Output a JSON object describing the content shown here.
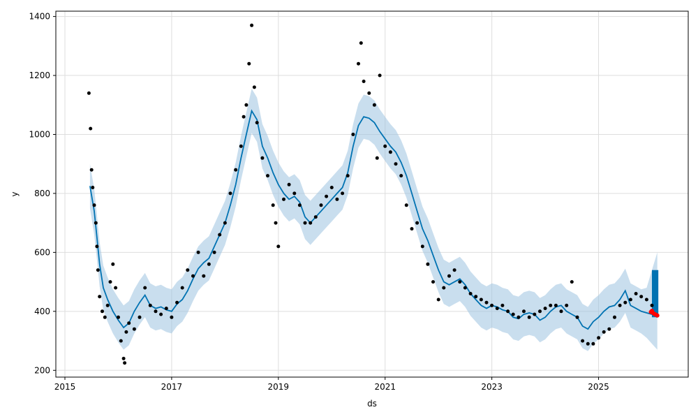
{
  "chart_data": {
    "type": "scatter",
    "title": "",
    "xlabel": "ds",
    "ylabel": "y",
    "xlim": [
      2014.83,
      2026.68
    ],
    "ylim": [
      177,
      1418
    ],
    "x_ticks": [
      2015,
      2017,
      2019,
      2021,
      2023,
      2025
    ],
    "y_ticks": [
      200,
      400,
      600,
      800,
      1000,
      1200,
      1400
    ],
    "grid": true,
    "legend": "none",
    "colors": {
      "observed": "#000000",
      "forecast_line": "#0072B2",
      "uncertainty_band": "#9CC3E0",
      "forecast_block": "#0072B2",
      "recent_points": "#FF0000"
    },
    "series": [
      {
        "role": "forecast (yhat)",
        "x": [
          2015.47,
          2015.55,
          2015.6,
          2015.65,
          2015.72,
          2015.8,
          2015.9,
          2016.0,
          2016.1,
          2016.2,
          2016.3,
          2016.4,
          2016.5,
          2016.6,
          2016.7,
          2016.8,
          2016.9,
          2017.0,
          2017.1,
          2017.2,
          2017.3,
          2017.4,
          2017.5,
          2017.6,
          2017.7,
          2017.8,
          2017.9,
          2018.0,
          2018.1,
          2018.2,
          2018.3,
          2018.4,
          2018.5,
          2018.6,
          2018.7,
          2018.8,
          2018.9,
          2019.0,
          2019.1,
          2019.2,
          2019.3,
          2019.4,
          2019.5,
          2019.6,
          2019.7,
          2019.8,
          2019.9,
          2020.0,
          2020.1,
          2020.2,
          2020.3,
          2020.4,
          2020.5,
          2020.6,
          2020.7,
          2020.8,
          2020.9,
          2021.0,
          2021.1,
          2021.2,
          2021.3,
          2021.4,
          2021.5,
          2021.6,
          2021.7,
          2021.8,
          2021.9,
          2022.0,
          2022.1,
          2022.2,
          2022.3,
          2022.4,
          2022.5,
          2022.6,
          2022.7,
          2022.8,
          2022.9,
          2023.0,
          2023.1,
          2023.2,
          2023.3,
          2023.4,
          2023.5,
          2023.6,
          2023.7,
          2023.8,
          2023.9,
          2024.0,
          2024.1,
          2024.2,
          2024.3,
          2024.4,
          2024.5,
          2024.6,
          2024.7,
          2024.8,
          2024.9,
          2025.0,
          2025.1,
          2025.2,
          2025.3,
          2025.4,
          2025.5,
          2025.6,
          2025.7,
          2025.8,
          2025.9,
          2026.0,
          2026.1
        ],
        "y": [
          825,
          740,
          650,
          560,
          480,
          440,
          400,
          370,
          345,
          360,
          400,
          430,
          455,
          420,
          410,
          415,
          405,
          400,
          425,
          440,
          470,
          510,
          545,
          565,
          580,
          620,
          660,
          700,
          760,
          830,
          920,
          1000,
          1080,
          1050,
          960,
          920,
          870,
          830,
          800,
          780,
          790,
          770,
          720,
          700,
          720,
          740,
          760,
          780,
          800,
          820,
          870,
          960,
          1030,
          1060,
          1055,
          1040,
          1010,
          985,
          960,
          940,
          905,
          860,
          800,
          740,
          680,
          640,
          590,
          540,
          500,
          490,
          500,
          510,
          490,
          460,
          440,
          420,
          410,
          420,
          415,
          405,
          400,
          380,
          375,
          390,
          395,
          390,
          370,
          380,
          400,
          415,
          420,
          400,
          390,
          380,
          350,
          340,
          365,
          380,
          400,
          415,
          420,
          440,
          470,
          420,
          410,
          400,
          395,
          390,
          380
        ]
      },
      {
        "role": "forecast lower bound",
        "x": [
          2015.47,
          2015.55,
          2015.6,
          2015.65,
          2015.72,
          2015.8,
          2015.9,
          2016.0,
          2016.1,
          2016.2,
          2016.3,
          2016.4,
          2016.5,
          2016.6,
          2016.7,
          2016.8,
          2016.9,
          2017.0,
          2017.1,
          2017.2,
          2017.3,
          2017.4,
          2017.5,
          2017.6,
          2017.7,
          2017.8,
          2017.9,
          2018.0,
          2018.1,
          2018.2,
          2018.3,
          2018.4,
          2018.5,
          2018.6,
          2018.7,
          2018.8,
          2018.9,
          2019.0,
          2019.1,
          2019.2,
          2019.3,
          2019.4,
          2019.5,
          2019.6,
          2019.7,
          2019.8,
          2019.9,
          2020.0,
          2020.1,
          2020.2,
          2020.3,
          2020.4,
          2020.5,
          2020.6,
          2020.7,
          2020.8,
          2020.9,
          2021.0,
          2021.1,
          2021.2,
          2021.3,
          2021.4,
          2021.5,
          2021.6,
          2021.7,
          2021.8,
          2021.9,
          2022.0,
          2022.1,
          2022.2,
          2022.3,
          2022.4,
          2022.5,
          2022.6,
          2022.7,
          2022.8,
          2022.9,
          2023.0,
          2023.1,
          2023.2,
          2023.3,
          2023.4,
          2023.5,
          2023.6,
          2023.7,
          2023.8,
          2023.9,
          2024.0,
          2024.1,
          2024.2,
          2024.3,
          2024.4,
          2024.5,
          2024.6,
          2024.7,
          2024.8,
          2024.9,
          2025.0,
          2025.1,
          2025.2,
          2025.3,
          2025.4,
          2025.5,
          2025.6,
          2025.7,
          2025.8,
          2025.9,
          2026.0,
          2026.1
        ],
        "y": [
          750,
          660,
          575,
          485,
          405,
          365,
          325,
          295,
          270,
          285,
          325,
          355,
          380,
          345,
          335,
          340,
          330,
          325,
          350,
          365,
          395,
          435,
          470,
          490,
          505,
          545,
          585,
          625,
          685,
          755,
          845,
          925,
          1005,
          975,
          885,
          845,
          795,
          755,
          725,
          705,
          715,
          695,
          645,
          625,
          645,
          665,
          685,
          705,
          725,
          745,
          795,
          885,
          955,
          985,
          980,
          965,
          935,
          910,
          885,
          865,
          830,
          785,
          725,
          665,
          605,
          565,
          515,
          465,
          425,
          415,
          425,
          435,
          415,
          385,
          365,
          345,
          335,
          345,
          340,
          330,
          325,
          305,
          300,
          315,
          320,
          315,
          295,
          305,
          325,
          340,
          345,
          325,
          315,
          305,
          275,
          265,
          290,
          305,
          325,
          340,
          345,
          365,
          395,
          345,
          335,
          325,
          310,
          290,
          270
        ]
      },
      {
        "role": "forecast upper bound",
        "x": [
          2015.47,
          2015.55,
          2015.6,
          2015.65,
          2015.72,
          2015.8,
          2015.9,
          2016.0,
          2016.1,
          2016.2,
          2016.3,
          2016.4,
          2016.5,
          2016.6,
          2016.7,
          2016.8,
          2016.9,
          2017.0,
          2017.1,
          2017.2,
          2017.3,
          2017.4,
          2017.5,
          2017.6,
          2017.7,
          2017.8,
          2017.9,
          2018.0,
          2018.1,
          2018.2,
          2018.3,
          2018.4,
          2018.5,
          2018.6,
          2018.7,
          2018.8,
          2018.9,
          2019.0,
          2019.1,
          2019.2,
          2019.3,
          2019.4,
          2019.5,
          2019.6,
          2019.7,
          2019.8,
          2019.9,
          2020.0,
          2020.1,
          2020.2,
          2020.3,
          2020.4,
          2020.5,
          2020.6,
          2020.7,
          2020.8,
          2020.9,
          2021.0,
          2021.1,
          2021.2,
          2021.3,
          2021.4,
          2021.5,
          2021.6,
          2021.7,
          2021.8,
          2021.9,
          2022.0,
          2022.1,
          2022.2,
          2022.3,
          2022.4,
          2022.5,
          2022.6,
          2022.7,
          2022.8,
          2022.9,
          2023.0,
          2023.1,
          2023.2,
          2023.3,
          2023.4,
          2023.5,
          2023.6,
          2023.7,
          2023.8,
          2023.9,
          2024.0,
          2024.1,
          2024.2,
          2024.3,
          2024.4,
          2024.5,
          2024.6,
          2024.7,
          2024.8,
          2024.9,
          2025.0,
          2025.1,
          2025.2,
          2025.3,
          2025.4,
          2025.5,
          2025.6,
          2025.7,
          2025.8,
          2025.9,
          2026.0,
          2026.1
        ],
        "y": [
          900,
          815,
          725,
          635,
          555,
          515,
          475,
          445,
          420,
          435,
          475,
          505,
          530,
          495,
          485,
          490,
          480,
          475,
          500,
          515,
          545,
          585,
          620,
          640,
          655,
          695,
          735,
          775,
          835,
          905,
          995,
          1075,
          1155,
          1125,
          1035,
          995,
          945,
          905,
          875,
          855,
          865,
          845,
          795,
          775,
          795,
          815,
          835,
          855,
          875,
          895,
          945,
          1035,
          1105,
          1135,
          1130,
          1115,
          1085,
          1060,
          1035,
          1015,
          980,
          935,
          875,
          815,
          755,
          715,
          665,
          615,
          575,
          565,
          575,
          585,
          565,
          535,
          515,
          495,
          485,
          495,
          490,
          480,
          475,
          455,
          450,
          465,
          470,
          465,
          445,
          455,
          475,
          490,
          495,
          475,
          465,
          455,
          425,
          415,
          440,
          455,
          475,
          490,
          495,
          515,
          545,
          495,
          485,
          475,
          480,
          540,
          600
        ]
      },
      {
        "role": "observed",
        "x": [
          2015.45,
          2015.48,
          2015.5,
          2015.52,
          2015.55,
          2015.58,
          2015.6,
          2015.62,
          2015.65,
          2015.7,
          2015.75,
          2015.8,
          2015.85,
          2015.9,
          2015.95,
          2016.0,
          2016.05,
          2016.1,
          2016.12,
          2016.15,
          2016.2,
          2016.3,
          2016.4,
          2016.5,
          2016.6,
          2016.7,
          2016.8,
          2016.9,
          2017.0,
          2017.1,
          2017.2,
          2017.3,
          2017.4,
          2017.5,
          2017.6,
          2017.7,
          2017.8,
          2017.9,
          2018.0,
          2018.1,
          2018.2,
          2018.3,
          2018.35,
          2018.4,
          2018.45,
          2018.5,
          2018.55,
          2018.6,
          2018.7,
          2018.8,
          2018.9,
          2018.95,
          2019.0,
          2019.1,
          2019.2,
          2019.3,
          2019.4,
          2019.5,
          2019.6,
          2019.7,
          2019.8,
          2019.9,
          2020.0,
          2020.1,
          2020.2,
          2020.3,
          2020.4,
          2020.5,
          2020.55,
          2020.6,
          2020.7,
          2020.8,
          2020.85,
          2020.9,
          2021.0,
          2021.1,
          2021.2,
          2021.3,
          2021.4,
          2021.5,
          2021.6,
          2021.7,
          2021.8,
          2021.9,
          2022.0,
          2022.1,
          2022.2,
          2022.3,
          2022.4,
          2022.5,
          2022.6,
          2022.7,
          2022.8,
          2022.9,
          2023.0,
          2023.1,
          2023.2,
          2023.3,
          2023.4,
          2023.5,
          2023.6,
          2023.7,
          2023.8,
          2023.9,
          2024.0,
          2024.1,
          2024.2,
          2024.3,
          2024.4,
          2024.5,
          2024.6,
          2024.7,
          2024.8,
          2024.9,
          2025.0,
          2025.1,
          2025.2,
          2025.3,
          2025.4,
          2025.5,
          2025.6,
          2025.7,
          2025.8,
          2025.9,
          2026.0
        ],
        "y": [
          1140,
          1020,
          880,
          820,
          760,
          700,
          620,
          540,
          450,
          400,
          380,
          420,
          500,
          560,
          480,
          380,
          300,
          240,
          225,
          330,
          360,
          340,
          380,
          480,
          420,
          400,
          390,
          410,
          380,
          430,
          480,
          540,
          520,
          600,
          520,
          560,
          600,
          660,
          700,
          800,
          880,
          960,
          1060,
          1100,
          1240,
          1370,
          1160,
          1040,
          920,
          860,
          760,
          700,
          620,
          780,
          830,
          800,
          760,
          700,
          700,
          720,
          760,
          790,
          820,
          780,
          800,
          860,
          1000,
          1240,
          1310,
          1180,
          1140,
          1100,
          920,
          1200,
          960,
          940,
          900,
          860,
          760,
          680,
          700,
          620,
          560,
          500,
          440,
          480,
          520,
          540,
          500,
          480,
          460,
          450,
          440,
          430,
          420,
          410,
          420,
          400,
          390,
          380,
          400,
          380,
          390,
          400,
          410,
          420,
          420,
          400,
          420,
          500,
          380,
          300,
          290,
          290,
          310,
          330,
          340,
          380,
          420,
          430,
          440,
          460,
          450,
          440,
          420
        ]
      }
    ],
    "forecast_block": {
      "x_start": 2026.0,
      "x_end": 2026.12,
      "y_low": 380,
      "y_high": 540
    },
    "recent_points": {
      "x": [
        2025.98,
        2026.0,
        2026.02,
        2026.04,
        2026.06,
        2026.08,
        2026.1
      ],
      "y": [
        398,
        402,
        395,
        392,
        390,
        388,
        386
      ]
    }
  }
}
